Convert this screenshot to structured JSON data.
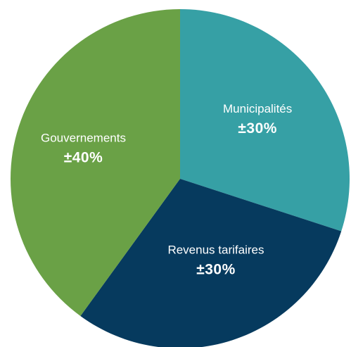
{
  "chart_data": {
    "type": "pie",
    "title": "",
    "start_angle_deg": 0,
    "direction": "clockwise",
    "slices": [
      {
        "label": "Municipalités",
        "value_label": "±30%",
        "value": 30,
        "color": "#36a0a5"
      },
      {
        "label": "Revenus tarifaires",
        "value_label": "±30%",
        "value": 30,
        "color": "#063a5e"
      },
      {
        "label": "Gouvernements",
        "value_label": "±40%",
        "value": 40,
        "color": "#6aa146"
      }
    ]
  }
}
